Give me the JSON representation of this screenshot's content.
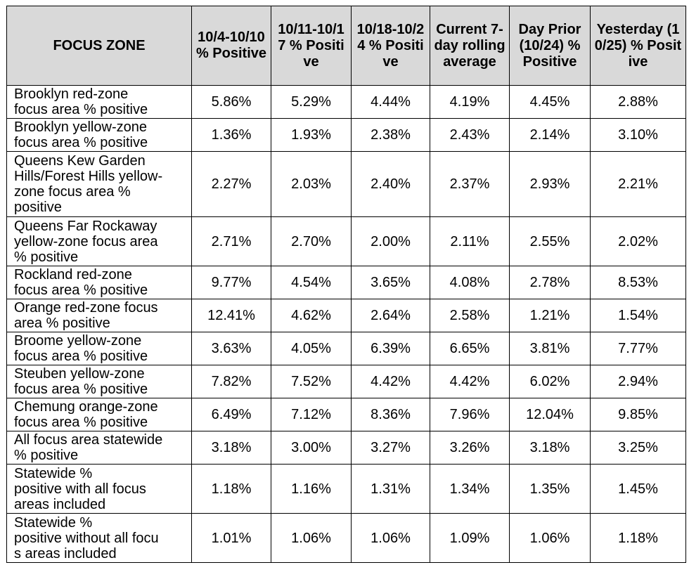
{
  "headers": [
    "FOCUS ZONE",
    "10/4-10/10 % Positive",
    "10/11-10/17 % Positive",
    "10/18-10/24 % Positive",
    "Current 7-day rolling average",
    "Day Prior (10/24) % Positive",
    "Yesterday (10/25) % Positive"
  ],
  "rows": [
    {
      "zone": "Brooklyn red-zone\nfocus area % positive",
      "values": [
        "5.86%",
        "5.29%",
        "4.44%",
        "4.19%",
        "4.45%",
        "2.88%"
      ]
    },
    {
      "zone": "Brooklyn yellow-zone\nfocus area % positive",
      "values": [
        "1.36%",
        "1.93%",
        "2.38%",
        "2.43%",
        "2.14%",
        "3.10%"
      ]
    },
    {
      "zone": "Queens Kew Garden\nHills/Forest Hills yellow-\nzone focus area %\npositive",
      "values": [
        "2.27%",
        "2.03%",
        "2.40%",
        "2.37%",
        "2.93%",
        "2.21%"
      ]
    },
    {
      "zone": "Queens Far Rockaway\n yellow-zone focus area\n% positive",
      "values": [
        "2.71%",
        "2.70%",
        "2.00%",
        "2.11%",
        "2.55%",
        "2.02%"
      ]
    },
    {
      "zone": "Rockland red-zone\nfocus area % positive",
      "values": [
        "9.77%",
        "4.54%",
        "3.65%",
        "4.08%",
        "2.78%",
        "8.53%"
      ]
    },
    {
      "zone": "Orange red-zone focus\narea % positive",
      "values": [
        "12.41%",
        "4.62%",
        "2.64%",
        "2.58%",
        "1.21%",
        "1.54%"
      ]
    },
    {
      "zone": "Broome yellow-zone\nfocus area % positive",
      "values": [
        "3.63%",
        "4.05%",
        "6.39%",
        "6.65%",
        "3.81%",
        "7.77%"
      ]
    },
    {
      "zone": "Steuben yellow-zone\nfocus area % positive",
      "values": [
        "7.82%",
        "7.52%",
        "4.42%",
        "4.42%",
        "6.02%",
        "2.94%"
      ]
    },
    {
      "zone": "Chemung orange-zone\nfocus area % positive",
      "values": [
        "6.49%",
        "7.12%",
        "8.36%",
        "7.96%",
        "12.04%",
        "9.85%"
      ]
    },
    {
      "zone": "All focus area statewide\n% positive",
      "values": [
        "3.18%",
        "3.00%",
        "3.27%",
        "3.26%",
        "3.18%",
        "3.25%"
      ]
    },
    {
      "zone": "Statewide %\npositive with all focus\nareas included",
      "values": [
        "1.18%",
        "1.16%",
        "1.31%",
        "1.34%",
        "1.35%",
        "1.45%"
      ]
    },
    {
      "zone": "Statewide %\npositive without all focu\ns areas included",
      "values": [
        "1.01%",
        "1.06%",
        "1.06%",
        "1.09%",
        "1.06%",
        "1.18%"
      ]
    }
  ]
}
